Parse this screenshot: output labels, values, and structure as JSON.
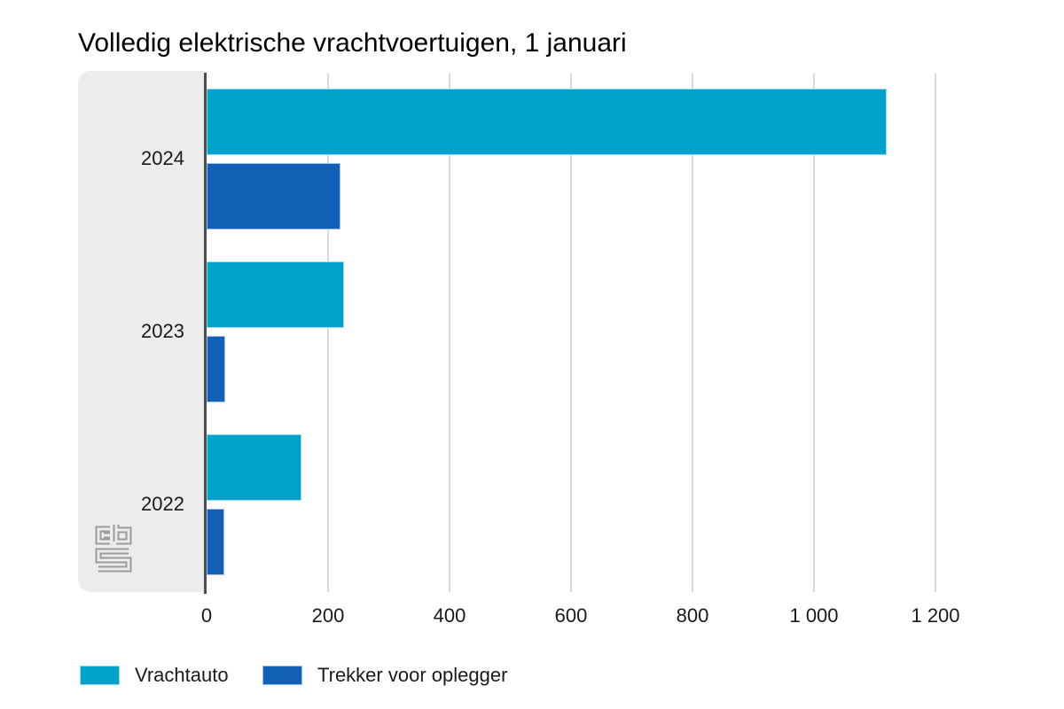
{
  "chart_data": {
    "type": "bar",
    "orientation": "horizontal",
    "title": "Volledig elektrische vrachtvoertuigen, 1 januari",
    "categories": [
      "2024",
      "2023",
      "2022"
    ],
    "series": [
      {
        "name": "Vrachtauto",
        "color": "#00a2cb",
        "border_color": "#9bdaec",
        "values": [
          1120,
          227,
          156
        ]
      },
      {
        "name": "Trekker voor oplegger",
        "color": "#1261b6",
        "border_color": "#9fc1e9",
        "values": [
          221,
          31,
          29
        ]
      }
    ],
    "xlabel": "",
    "ylabel": "",
    "xlim": [
      0,
      1200
    ],
    "x_ticks": [
      {
        "value": 0,
        "label": "0"
      },
      {
        "value": 200,
        "label": "200"
      },
      {
        "value": 400,
        "label": "400"
      },
      {
        "value": 600,
        "label": "600"
      },
      {
        "value": 800,
        "label": "800"
      },
      {
        "value": 1000,
        "label": "1 000"
      },
      {
        "value": 1200,
        "label": "1 200"
      }
    ],
    "grid": "vertical-only",
    "gridline_color": "#d9d9d9",
    "axis_line_color": "#4d4d4d",
    "category_band_color": "#ececec",
    "legend_position": "bottom"
  },
  "branding": {
    "logo_name": "cbs-logo",
    "logo_color": "#9b9b9b"
  }
}
